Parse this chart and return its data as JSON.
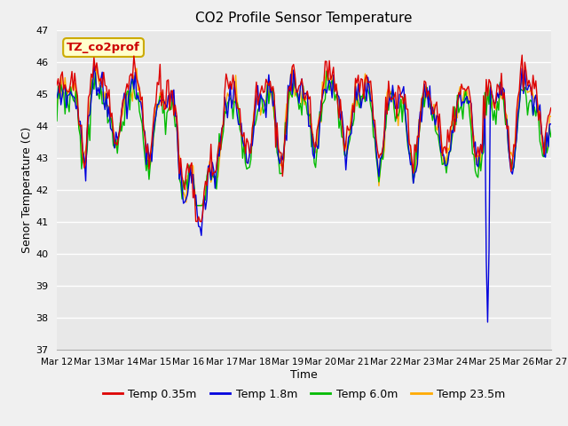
{
  "title": "CO2 Profile Sensor Temperature",
  "xlabel": "Time",
  "ylabel": "Senor Temperature (C)",
  "ylim": [
    37.0,
    47.0
  ],
  "yticks": [
    37.0,
    38.0,
    39.0,
    40.0,
    41.0,
    42.0,
    43.0,
    44.0,
    45.0,
    46.0,
    47.0
  ],
  "xtick_labels": [
    "Mar 12",
    "Mar 13",
    "Mar 14",
    "Mar 15",
    "Mar 16",
    "Mar 17",
    "Mar 18",
    "Mar 19",
    "Mar 20",
    "Mar 21",
    "Mar 22",
    "Mar 23",
    "Mar 24",
    "Mar 25",
    "Mar 26",
    "Mar 27"
  ],
  "colors": {
    "red": "#dd0000",
    "blue": "#0000dd",
    "green": "#00bb00",
    "orange": "#ffaa00"
  },
  "legend_labels": [
    "Temp 0.35m",
    "Temp 1.8m",
    "Temp 6.0m",
    "Temp 23.5m"
  ],
  "annotation_text": "TZ_co2prof",
  "annotation_bbox_facecolor": "#ffffcc",
  "annotation_bbox_edgecolor": "#ccaa00",
  "plot_bg_color": "#e8e8e8",
  "fig_bg_color": "#f0f0f0",
  "grid_color": "#ffffff",
  "spike_value": 37.85,
  "title_fontsize": 11,
  "axis_label_fontsize": 9,
  "tick_fontsize": 8,
  "legend_fontsize": 9
}
